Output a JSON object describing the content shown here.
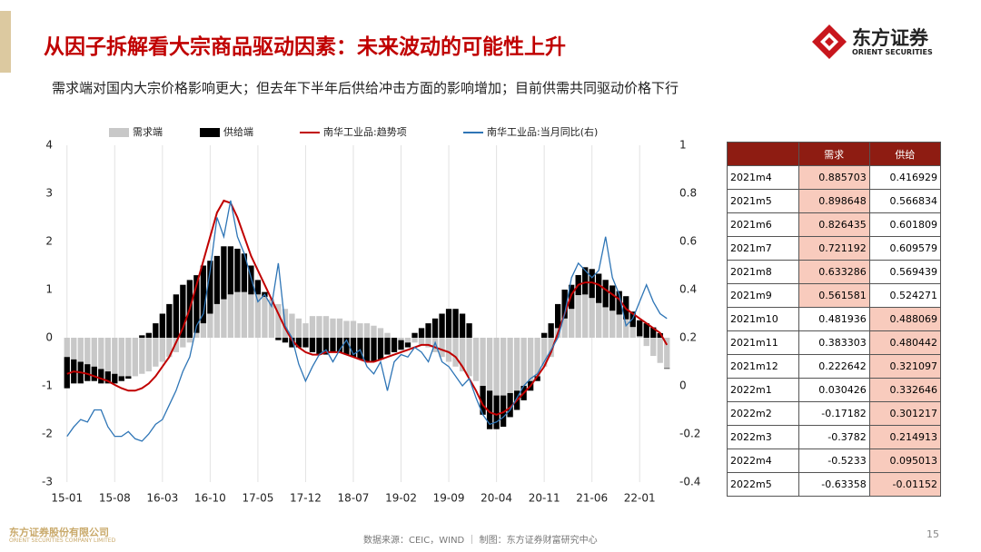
{
  "header": {
    "title": "从因子拆解看大宗商品驱动因素：未来波动的可能性上升",
    "subtitle": "需求端对国内大宗价格影响更大；但去年下半年后供给冲击方面的影响增加；目前供需共同驱动价格下行",
    "logo": "东方证券",
    "logo_en": "ORIENT SECURITIES"
  },
  "chart_data": {
    "type": "bar-line",
    "categories": [
      "15-01",
      null,
      null,
      null,
      null,
      null,
      null,
      "15-08",
      null,
      null,
      null,
      null,
      null,
      null,
      "16-03",
      null,
      null,
      null,
      null,
      null,
      null,
      "16-10",
      null,
      null,
      null,
      null,
      null,
      null,
      "17-05",
      null,
      null,
      null,
      null,
      null,
      null,
      "17-12",
      null,
      null,
      null,
      null,
      null,
      null,
      "18-07",
      null,
      null,
      null,
      null,
      null,
      null,
      "19-02",
      null,
      null,
      null,
      null,
      null,
      null,
      "19-09",
      null,
      null,
      null,
      null,
      null,
      null,
      "20-04",
      null,
      null,
      null,
      null,
      null,
      null,
      "20-11",
      null,
      null,
      null,
      null,
      null,
      null,
      "21-06",
      null,
      null,
      null,
      null,
      null,
      null,
      "22-01",
      null,
      null,
      null,
      null
    ],
    "series": [
      {
        "name": "需求端",
        "type": "bar",
        "color": "#c8c8c8",
        "values": [
          -0.4,
          -0.45,
          -0.5,
          -0.55,
          -0.6,
          -0.65,
          -0.7,
          -0.75,
          -0.8,
          -0.8,
          -0.8,
          -0.75,
          -0.7,
          -0.6,
          -0.5,
          -0.4,
          -0.3,
          -0.2,
          -0.1,
          0.1,
          0.3,
          0.5,
          0.7,
          0.8,
          0.9,
          0.95,
          0.95,
          0.9,
          0.9,
          0.85,
          0.8,
          0.7,
          0.6,
          0.5,
          0.4,
          0.3,
          0.45,
          0.45,
          0.45,
          0.4,
          0.4,
          0.35,
          0.35,
          0.3,
          0.3,
          0.25,
          0.2,
          0.1,
          0.0,
          -0.05,
          -0.1,
          -0.1,
          -0.15,
          -0.2,
          -0.3,
          -0.4,
          -0.5,
          -0.6,
          -0.7,
          -0.8,
          -0.9,
          -1.0,
          -1.1,
          -1.2,
          -1.2,
          -1.15,
          -1.1,
          -1.0,
          -0.9,
          -0.8,
          -0.6,
          -0.4,
          0.2,
          0.4,
          0.6,
          0.885703,
          0.898648,
          0.826435,
          0.721192,
          0.633286,
          0.561581,
          0.481936,
          0.383303,
          0.222642,
          0.030426,
          -0.17182,
          -0.3782,
          -0.5233,
          -0.63358
        ]
      },
      {
        "name": "供给端",
        "type": "bar",
        "color": "#000000",
        "values": [
          -0.65,
          -0.5,
          -0.45,
          -0.35,
          -0.3,
          -0.3,
          -0.25,
          -0.2,
          -0.1,
          -0.05,
          0,
          0.05,
          0.1,
          0.3,
          0.5,
          0.7,
          0.9,
          1.1,
          1.2,
          1.2,
          1.2,
          1.1,
          1.0,
          1.1,
          1.0,
          0.9,
          0.8,
          0.6,
          0.3,
          0.1,
          0,
          -0.05,
          -0.1,
          -0.2,
          -0.2,
          -0.2,
          -0.3,
          -0.35,
          -0.35,
          -0.3,
          -0.3,
          -0.35,
          -0.4,
          -0.45,
          -0.5,
          -0.5,
          -0.45,
          -0.35,
          -0.3,
          -0.2,
          -0.1,
          0.1,
          0.2,
          0.3,
          0.4,
          0.5,
          0.6,
          0.6,
          0.5,
          0.3,
          0.0,
          -0.6,
          -0.8,
          -0.7,
          -0.65,
          -0.5,
          -0.4,
          -0.3,
          -0.2,
          -0.1,
          0.1,
          0.3,
          0.5,
          0.6,
          0.5,
          0.416929,
          0.566834,
          0.601809,
          0.609579,
          0.569439,
          0.524271,
          0.488069,
          0.480442,
          0.321097,
          0.332646,
          0.301217,
          0.214913,
          0.095013,
          -0.01152
        ]
      },
      {
        "name": "南华工业品:趋势项",
        "type": "line",
        "color": "#c00000",
        "values": [
          -0.75,
          -0.7,
          -0.72,
          -0.75,
          -0.8,
          -0.85,
          -0.9,
          -0.98,
          -1.05,
          -1.1,
          -1.1,
          -1.05,
          -0.95,
          -0.8,
          -0.6,
          -0.4,
          -0.1,
          0.2,
          0.6,
          1.1,
          1.6,
          2.1,
          2.6,
          2.85,
          2.8,
          2.5,
          2.1,
          1.7,
          1.4,
          1.1,
          0.8,
          0.5,
          0.2,
          -0.05,
          -0.2,
          -0.3,
          -0.35,
          -0.35,
          -0.3,
          -0.3,
          -0.3,
          -0.35,
          -0.4,
          -0.45,
          -0.5,
          -0.5,
          -0.45,
          -0.4,
          -0.35,
          -0.3,
          -0.25,
          -0.2,
          -0.15,
          -0.15,
          -0.2,
          -0.25,
          -0.3,
          -0.4,
          -0.6,
          -0.85,
          -1.1,
          -1.4,
          -1.55,
          -1.6,
          -1.55,
          -1.45,
          -1.3,
          -1.15,
          -1.0,
          -0.8,
          -0.6,
          -0.3,
          0.1,
          0.5,
          0.9,
          1.1,
          1.15,
          1.15,
          1.1,
          1.0,
          0.9,
          0.8,
          0.6,
          0.5,
          0.4,
          0.3,
          0.2,
          0.1,
          -0.15
        ]
      },
      {
        "name": "南华工业品:当月同比(右)",
        "type": "line",
        "axis": "y2",
        "color": "#2e75b6",
        "values": [
          -0.21,
          -0.17,
          -0.14,
          -0.15,
          -0.1,
          -0.1,
          -0.17,
          -0.21,
          -0.21,
          -0.19,
          -0.22,
          -0.23,
          -0.2,
          -0.16,
          -0.14,
          -0.08,
          -0.02,
          0.06,
          0.12,
          0.25,
          0.3,
          0.48,
          0.7,
          0.62,
          0.77,
          0.62,
          0.55,
          0.45,
          0.35,
          0.38,
          0.33,
          0.51,
          0.25,
          0.2,
          0.09,
          0.02,
          0.08,
          0.13,
          0.15,
          0.1,
          0.15,
          0.19,
          0.13,
          0.15,
          0.08,
          0.05,
          0.1,
          -0.02,
          0.1,
          0.13,
          0.12,
          0.16,
          0.14,
          0.1,
          0.18,
          0.1,
          0.08,
          0.04,
          0.0,
          0.03,
          -0.05,
          -0.12,
          -0.16,
          -0.15,
          -0.13,
          -0.1,
          -0.05,
          0.0,
          0.03,
          0.05,
          0.1,
          0.15,
          0.2,
          0.3,
          0.45,
          0.51,
          0.48,
          0.45,
          0.48,
          0.62,
          0.45,
          0.38,
          0.25,
          0.28,
          0.35,
          0.42,
          0.35,
          0.3,
          0.28
        ]
      }
    ],
    "ylim": [
      -3,
      4
    ],
    "yticks": [
      -3,
      -2,
      -1,
      0,
      1,
      2,
      3,
      4
    ],
    "y2lim": [
      -0.4,
      1
    ],
    "y2ticks": [
      -0.4,
      -0.2,
      0,
      0.2,
      0.4,
      0.6,
      0.8,
      1
    ],
    "grid": "x",
    "legend": "top"
  },
  "table": {
    "columns": [
      "需求",
      "供给"
    ],
    "rows": [
      [
        "2021m4",
        0.885703,
        0.416929
      ],
      [
        "2021m5",
        0.898648,
        0.566834
      ],
      [
        "2021m6",
        0.826435,
        0.601809
      ],
      [
        "2021m7",
        0.721192,
        0.609579
      ],
      [
        "2021m8",
        0.633286,
        0.569439
      ],
      [
        "2021m9",
        0.561581,
        0.524271
      ],
      [
        "2021m10",
        0.481936,
        0.488069
      ],
      [
        "2021m11",
        0.383303,
        0.480442
      ],
      [
        "2021m12",
        0.222642,
        0.321097
      ],
      [
        "2022m1",
        0.030426,
        0.332646
      ],
      [
        "2022m2",
        -0.17182,
        0.301217
      ],
      [
        "2022m3",
        -0.3782,
        0.214913
      ],
      [
        "2022m4",
        -0.5233,
        0.095013
      ],
      [
        "2022m5",
        -0.63358,
        -0.01152
      ]
    ]
  },
  "footer": {
    "company": "东方证券股份有限公司",
    "company_en": "ORIENT SECURITIES COMPANY LIMITED",
    "source": "数据来源：CEIC，WIND ｜ 制图：东方证券财富研究中心",
    "page": "15"
  }
}
